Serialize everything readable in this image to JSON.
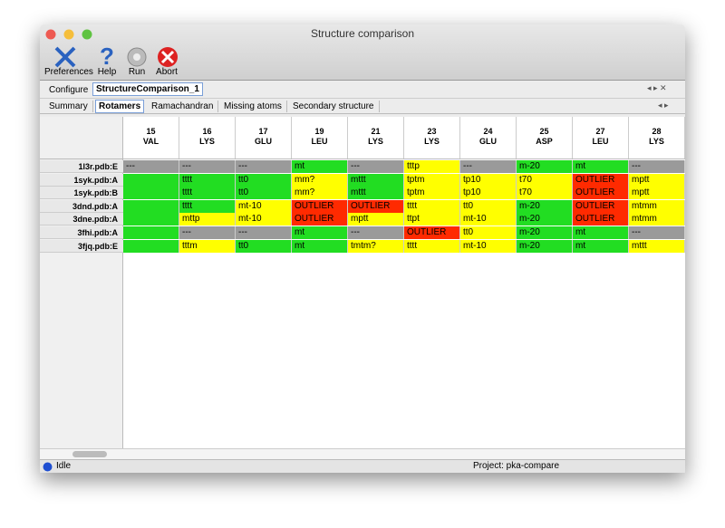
{
  "window": {
    "title": "Structure comparison"
  },
  "toolbar": [
    "Preferences",
    "Help",
    "Run",
    "Abort"
  ],
  "tabs": {
    "configure": "Configure",
    "active": "StructureComparison_1"
  },
  "subtabs": {
    "items": [
      "Summary",
      "Rotamers",
      "Ramachandran",
      "Missing atoms",
      "Secondary structure"
    ],
    "selected": 1
  },
  "table": {
    "columns": [
      {
        "num": "15",
        "res": "VAL"
      },
      {
        "num": "16",
        "res": "LYS"
      },
      {
        "num": "17",
        "res": "GLU"
      },
      {
        "num": "19",
        "res": "LEU"
      },
      {
        "num": "21",
        "res": "LYS"
      },
      {
        "num": "23",
        "res": "LYS"
      },
      {
        "num": "24",
        "res": "GLU"
      },
      {
        "num": "25",
        "res": "ASP"
      },
      {
        "num": "27",
        "res": "LEU"
      },
      {
        "num": "28",
        "res": "LYS"
      }
    ],
    "rows": [
      {
        "label": "1l3r.pdb:E",
        "cells": [
          {
            "text": "---",
            "color": "#9a9a9a"
          },
          {
            "text": "---",
            "color": "#9a9a9a"
          },
          {
            "text": "---",
            "color": "#9a9a9a"
          },
          {
            "text": "mt",
            "color": "#22dd22"
          },
          {
            "text": "---",
            "color": "#9a9a9a"
          },
          {
            "text": "tttp",
            "color": "#ffff00"
          },
          {
            "text": "---",
            "color": "#9a9a9a"
          },
          {
            "text": "m-20",
            "color": "#22dd22"
          },
          {
            "text": "mt",
            "color": "#22dd22"
          },
          {
            "text": "---",
            "color": "#9a9a9a"
          }
        ]
      },
      {
        "label": "1syk.pdb:A",
        "cells": [
          {
            "color": "#22dd22"
          },
          {
            "text": "tttt",
            "color": "#22dd22"
          },
          {
            "text": "tt0",
            "color": "#22dd22"
          },
          {
            "text": "mm?",
            "color": "#ffff00"
          },
          {
            "text": "mttt",
            "color": "#22dd22"
          },
          {
            "text": "tptm",
            "color": "#ffff00"
          },
          {
            "text": "tp10",
            "color": "#ffff00"
          },
          {
            "text": "t70",
            "color": "#ffff00"
          },
          {
            "text": "OUTLIER",
            "color": "#ff2a00"
          },
          {
            "text": "mptt",
            "color": "#ffff00"
          }
        ]
      },
      {
        "label": "1syk.pdb:B",
        "cells": [
          {
            "color": "#22dd22"
          },
          {
            "text": "tttt",
            "color": "#22dd22"
          },
          {
            "text": "tt0",
            "color": "#22dd22"
          },
          {
            "text": "mm?",
            "color": "#ffff00"
          },
          {
            "text": "mttt",
            "color": "#22dd22"
          },
          {
            "text": "tptm",
            "color": "#ffff00"
          },
          {
            "text": "tp10",
            "color": "#ffff00"
          },
          {
            "text": "t70",
            "color": "#ffff00"
          },
          {
            "text": "OUTLIER",
            "color": "#ff2a00"
          },
          {
            "text": "mptt",
            "color": "#ffff00"
          }
        ]
      },
      {
        "label": "3dnd.pdb:A",
        "cells": [
          {
            "color": "#22dd22"
          },
          {
            "text": "tttt",
            "color": "#22dd22"
          },
          {
            "text": "mt-10",
            "color": "#ffff00"
          },
          {
            "text": "OUTLIER",
            "color": "#ff2a00"
          },
          {
            "text": "OUTLIER",
            "color": "#ff2a00"
          },
          {
            "text": "tttt",
            "color": "#ffff00"
          },
          {
            "text": "tt0",
            "color": "#ffff00"
          },
          {
            "text": "m-20",
            "color": "#22dd22"
          },
          {
            "text": "OUTLIER",
            "color": "#ff2a00"
          },
          {
            "text": "mtmm",
            "color": "#ffff00"
          }
        ]
      },
      {
        "label": "3dne.pdb:A",
        "cells": [
          {
            "color": "#22dd22"
          },
          {
            "text": "mttp",
            "color": "#ffff00"
          },
          {
            "text": "mt-10",
            "color": "#ffff00"
          },
          {
            "text": "OUTLIER",
            "color": "#ff2a00"
          },
          {
            "text": "mptt",
            "color": "#ffff00"
          },
          {
            "text": "ttpt",
            "color": "#ffff00"
          },
          {
            "text": "mt-10",
            "color": "#ffff00"
          },
          {
            "text": "m-20",
            "color": "#22dd22"
          },
          {
            "text": "OUTLIER",
            "color": "#ff2a00"
          },
          {
            "text": "mtmm",
            "color": "#ffff00"
          }
        ]
      },
      {
        "label": "3fhi.pdb:A",
        "cells": [
          {
            "color": "#22dd22"
          },
          {
            "text": "---",
            "color": "#9a9a9a"
          },
          {
            "text": "---",
            "color": "#9a9a9a"
          },
          {
            "text": "mt",
            "color": "#22dd22"
          },
          {
            "text": "---",
            "color": "#9a9a9a"
          },
          {
            "text": "OUTLIER",
            "color": "#ff2a00"
          },
          {
            "text": "tt0",
            "color": "#ffff00"
          },
          {
            "text": "m-20",
            "color": "#22dd22"
          },
          {
            "text": "mt",
            "color": "#22dd22"
          },
          {
            "text": "---",
            "color": "#9a9a9a"
          }
        ]
      },
      {
        "label": "3fjq.pdb:E",
        "cells": [
          {
            "color": "#22dd22"
          },
          {
            "text": "tttm",
            "color": "#ffff00"
          },
          {
            "text": "tt0",
            "color": "#22dd22"
          },
          {
            "text": "mt",
            "color": "#22dd22"
          },
          {
            "text": "tmtm?",
            "color": "#ffff00"
          },
          {
            "text": "tttt",
            "color": "#ffff00"
          },
          {
            "text": "mt-10",
            "color": "#ffff00"
          },
          {
            "text": "m-20",
            "color": "#22dd22"
          },
          {
            "text": "mt",
            "color": "#22dd22"
          },
          {
            "text": "mttt",
            "color": "#ffff00"
          }
        ]
      }
    ]
  },
  "status": {
    "state": "Idle",
    "project": "Project: pka-compare"
  }
}
